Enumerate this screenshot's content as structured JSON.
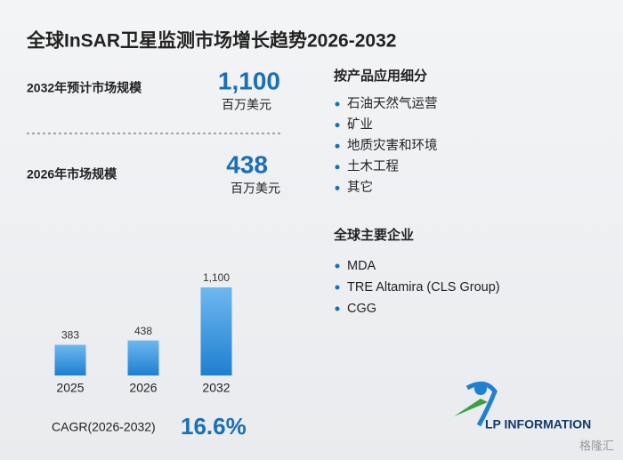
{
  "title": "全球InSAR卫星监测市场增长趋势2026-2032",
  "stats": [
    {
      "label": "2032年预计市场规模",
      "value": "1,100",
      "unit": "百万美元"
    },
    {
      "label": "2026年市场规模",
      "value": "438",
      "unit": "百万美元"
    }
  ],
  "segments": {
    "title": "按产品应用细分",
    "items": [
      "石油天然气运营",
      "矿业",
      "地质灾害和环境",
      "土木工程",
      "其它"
    ]
  },
  "companies": {
    "title": "全球主要企业",
    "items": [
      "MDA",
      "TRE Altamira (CLS Group)",
      "CGG"
    ]
  },
  "chart_data": {
    "type": "bar",
    "categories": [
      "2025",
      "2026",
      "2032"
    ],
    "values": [
      383,
      438,
      1100
    ],
    "value_labels": [
      "383",
      "438",
      "1,100"
    ],
    "color": "#1f7fd0"
  },
  "cagr": {
    "label": "CAGR(2026-2032)",
    "value": "16.6%"
  },
  "logo": "LP INFORMATION",
  "watermark": "格隆汇"
}
